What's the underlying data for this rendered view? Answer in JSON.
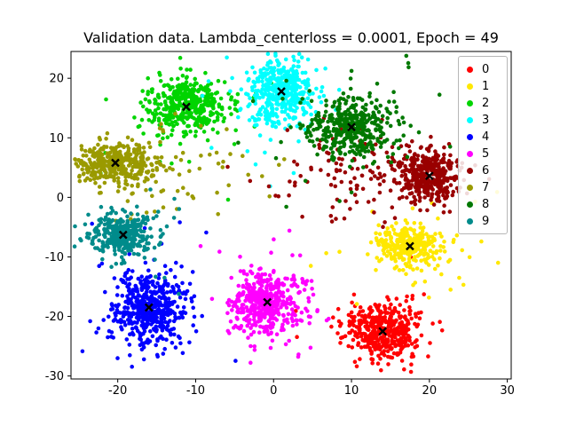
{
  "title": "Validation data. Lambda_centerloss = 0.0001, Epoch = 49",
  "colors": {
    "background": "#ffffff",
    "axes": "#000000",
    "center_marker": "#000000"
  },
  "chart_data": {
    "type": "scatter",
    "title": "Validation data. Lambda_centerloss = 0.0001, Epoch = 49",
    "xlabel": "",
    "ylabel": "",
    "xlim": [
      -26,
      30.5
    ],
    "ylim": [
      -30.5,
      24.5
    ],
    "xticks": [
      -20,
      -10,
      0,
      10,
      20,
      30
    ],
    "yticks": [
      -30,
      -20,
      -10,
      0,
      10,
      20
    ],
    "grid": false,
    "legend_position": "upper right",
    "legend_labels": [
      "0",
      "1",
      "2",
      "3",
      "4",
      "5",
      "6",
      "7",
      "8",
      "9"
    ],
    "center_marker": {
      "shape": "x",
      "color": "#000000"
    },
    "series": [
      {
        "name": "0",
        "color": "#ff0000",
        "center": [
          14.0,
          -22.5
        ],
        "sigma": [
          2.3,
          2.4
        ],
        "n": 450,
        "outlier_frac": 0.12,
        "outlier_sigma": [
          4.5,
          5.5
        ]
      },
      {
        "name": "1",
        "color": "#ffe800",
        "center": [
          17.5,
          -8.2
        ],
        "sigma": [
          2.0,
          1.8
        ],
        "n": 300,
        "outlier_frac": 0.15,
        "outlier_sigma": [
          5.5,
          4.0
        ]
      },
      {
        "name": "2",
        "color": "#00d400",
        "center": [
          -11.2,
          15.2
        ],
        "sigma": [
          2.4,
          2.2
        ],
        "n": 430,
        "outlier_frac": 0.12,
        "outlier_sigma": [
          5.0,
          6.0
        ]
      },
      {
        "name": "3",
        "color": "#00ffff",
        "center": [
          1.0,
          17.8
        ],
        "sigma": [
          2.0,
          2.6
        ],
        "n": 450,
        "outlier_frac": 0.1,
        "outlier_sigma": [
          3.5,
          6.5
        ]
      },
      {
        "name": "4",
        "color": "#0000ff",
        "center": [
          -16.0,
          -18.5
        ],
        "sigma": [
          2.3,
          3.0
        ],
        "n": 500,
        "outlier_frac": 0.13,
        "outlier_sigma": [
          5.0,
          6.0
        ]
      },
      {
        "name": "5",
        "color": "#ff00ff",
        "center": [
          -0.8,
          -17.6
        ],
        "sigma": [
          2.3,
          2.6
        ],
        "n": 450,
        "outlier_frac": 0.12,
        "outlier_sigma": [
          4.5,
          5.5
        ]
      },
      {
        "name": "6",
        "color": "#990000",
        "center": [
          20.0,
          3.6
        ],
        "sigma": [
          2.0,
          2.0
        ],
        "n": 470,
        "outlier_frac": 0.3,
        "outlier_center": [
          11.5,
          4.0
        ],
        "outlier_sigma": [
          5.5,
          4.0
        ]
      },
      {
        "name": "7",
        "color": "#9a9a00",
        "center": [
          -20.3,
          5.8
        ],
        "sigma": [
          2.6,
          1.8
        ],
        "n": 420,
        "outlier_frac": 0.15,
        "outlier_center": [
          -13.0,
          4.5
        ],
        "outlier_sigma": [
          7.0,
          4.0
        ]
      },
      {
        "name": "8",
        "color": "#007800",
        "center": [
          10.0,
          11.8
        ],
        "sigma": [
          2.7,
          2.4
        ],
        "n": 430,
        "outlier_frac": 0.18,
        "outlier_sigma": [
          5.0,
          5.0
        ]
      },
      {
        "name": "9",
        "color": "#008b8b",
        "center": [
          -19.3,
          -6.3
        ],
        "sigma": [
          2.2,
          1.9
        ],
        "n": 330,
        "outlier_frac": 0.08,
        "outlier_sigma": [
          4.0,
          4.0
        ]
      }
    ]
  }
}
